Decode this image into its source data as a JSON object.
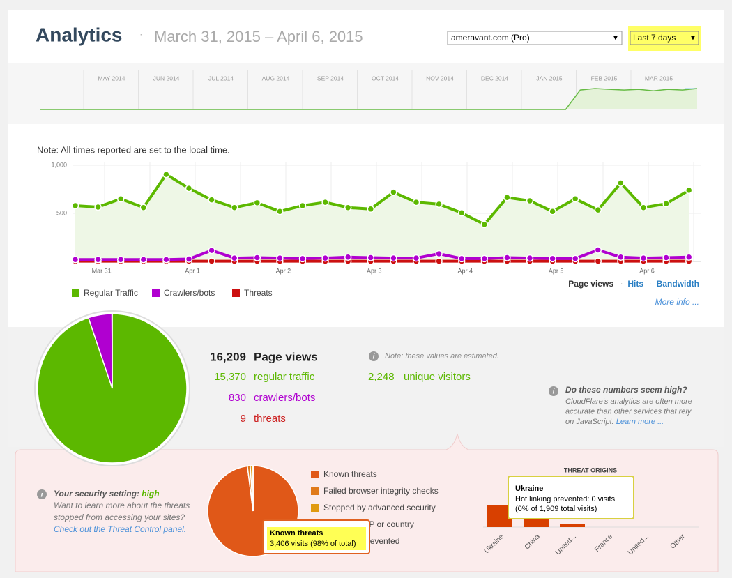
{
  "header": {
    "title": "Analytics",
    "date_range": "March 31, 2015 – April 6, 2015",
    "site_select": "ameravant.com (Pro)",
    "period_select": "Last 7 days"
  },
  "timeline": {
    "months": [
      "MAY 2014",
      "JUN 2014",
      "JUL 2014",
      "AUG 2014",
      "SEP 2014",
      "OCT 2014",
      "NOV 2014",
      "DEC 2014",
      "JAN 2015",
      "FEB 2015",
      "MAR 2015"
    ],
    "values": [
      0,
      0,
      0,
      0,
      0,
      0,
      0,
      0,
      0,
      0,
      0,
      0,
      0,
      0,
      0,
      0,
      0,
      0,
      0,
      0,
      0,
      0,
      0,
      0,
      0,
      0,
      0,
      0,
      0,
      0,
      0,
      0,
      0,
      0,
      0,
      0,
      0,
      26,
      28,
      27,
      26,
      27,
      25,
      27,
      26,
      28
    ]
  },
  "main_chart": {
    "type": "line",
    "note": "Note: All times reported are set to the local time.",
    "categories": [
      null,
      "Mar 31",
      null,
      null,
      null,
      "Apr 1",
      null,
      null,
      null,
      "Apr 2",
      null,
      null,
      null,
      "Apr 3",
      null,
      null,
      null,
      "Apr 4",
      null,
      null,
      null,
      "Apr 5",
      null,
      null,
      null,
      "Apr 6",
      null,
      null
    ],
    "ylim": [
      0,
      1000
    ],
    "yticks": [
      {
        "value": 1000,
        "label": "1,000"
      },
      500
    ],
    "series": [
      {
        "name": "Regular Traffic",
        "color": "#5cb800",
        "values": [
          580,
          565,
          650,
          560,
          905,
          760,
          640,
          560,
          610,
          520,
          580,
          615,
          560,
          545,
          720,
          615,
          595,
          505,
          385,
          665,
          630,
          520,
          650,
          535,
          815,
          560,
          600,
          740
        ]
      },
      {
        "name": "Crawlers/bots",
        "color": "#b000d0",
        "values": [
          20,
          20,
          20,
          20,
          20,
          25,
          115,
          35,
          40,
          35,
          30,
          35,
          45,
          40,
          35,
          35,
          80,
          30,
          30,
          40,
          35,
          30,
          30,
          120,
          45,
          35,
          40,
          45
        ]
      },
      {
        "name": "Threats",
        "color": "#cc1010",
        "values": [
          3,
          3,
          3,
          3,
          3,
          3,
          3,
          3,
          3,
          3,
          3,
          3,
          3,
          3,
          3,
          3,
          3,
          3,
          3,
          3,
          3,
          3,
          3,
          3,
          3,
          3,
          3,
          3
        ]
      }
    ],
    "metrics": [
      "Page views",
      "Hits",
      "Bandwidth"
    ],
    "more_info": "More info ..."
  },
  "stats": {
    "page_views": {
      "value": 16209,
      "label": "16,209"
    },
    "page_views_label": "Page views",
    "regular": {
      "value": 15370,
      "label": "15,370"
    },
    "regular_label": "regular traffic",
    "crawlers": {
      "value": 830,
      "label": "830"
    },
    "crawlers_label": "crawlers/bots",
    "threats": {
      "value": 9,
      "label": "9"
    },
    "threats_label": "threats",
    "note": "Note: these values are estimated.",
    "unique": "2,248",
    "unique_label": "unique visitors",
    "help_title": "Do these numbers seem high?",
    "help_lines": [
      "CloudFlare's analytics are often more",
      "accurate than other services that rely",
      "on JavaScript."
    ],
    "help_link": "Learn more ..."
  },
  "security": {
    "label": "Your security setting:",
    "level": "high",
    "lines": [
      "Want to learn more about the threats",
      "stopped from accessing your sites?"
    ],
    "link": "Check out the Threat Control panel.",
    "threat_pie": {
      "categories": [
        "Known threats",
        "Failed browser integrity checks",
        "Stopped by advanced security",
        "Blocked by IP or country",
        "Hotlinking prevented"
      ],
      "values": [
        98,
        1,
        1,
        0,
        0
      ],
      "colors": [
        "#e05818",
        "#e07a1a",
        "#e09a10",
        "#f0c040",
        "#f5d878"
      ]
    },
    "pie_tooltip": {
      "title": "Known threats",
      "text": "3,406 visits (98% of total)"
    },
    "origins": {
      "title": "THREAT ORIGINS",
      "categories": [
        "Ukraine",
        "China",
        "United...",
        "France",
        "United...",
        "Other"
      ],
      "values": [
        1909,
        1700,
        250,
        0,
        0,
        0
      ],
      "color": "#d84000"
    },
    "origin_tooltip": {
      "title": "Ukraine",
      "line1": "Hot linking prevented: 0 visits",
      "line2": "(0% of 1,909 total visits)"
    }
  }
}
